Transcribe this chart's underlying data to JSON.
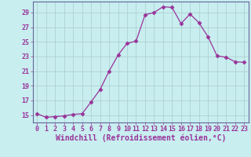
{
  "x": [
    0,
    1,
    2,
    3,
    4,
    5,
    6,
    7,
    8,
    9,
    10,
    11,
    12,
    13,
    14,
    15,
    16,
    17,
    18,
    19,
    20,
    21,
    22,
    23
  ],
  "y": [
    15.2,
    14.7,
    14.8,
    14.9,
    15.1,
    15.2,
    16.8,
    18.5,
    21.0,
    23.2,
    24.8,
    25.1,
    28.7,
    29.0,
    29.8,
    29.7,
    27.5,
    28.8,
    27.6,
    25.7,
    23.1,
    22.9,
    22.3,
    22.2
  ],
  "line_color": "#993399",
  "marker": "D",
  "marker_size": 2.5,
  "background_color": "#c8eef0",
  "grid_color": "#aacccc",
  "yticks": [
    15,
    17,
    19,
    21,
    23,
    25,
    27,
    29
  ],
  "xlim": [
    -0.5,
    23.5
  ],
  "ylim": [
    14.0,
    30.5
  ],
  "xlabel": "Windchill (Refroidissement éolien,°C)",
  "xlabel_color": "#993399",
  "tick_color": "#993399",
  "spine_color": "#666699",
  "tick_fontsize": 6,
  "label_fontsize": 7
}
